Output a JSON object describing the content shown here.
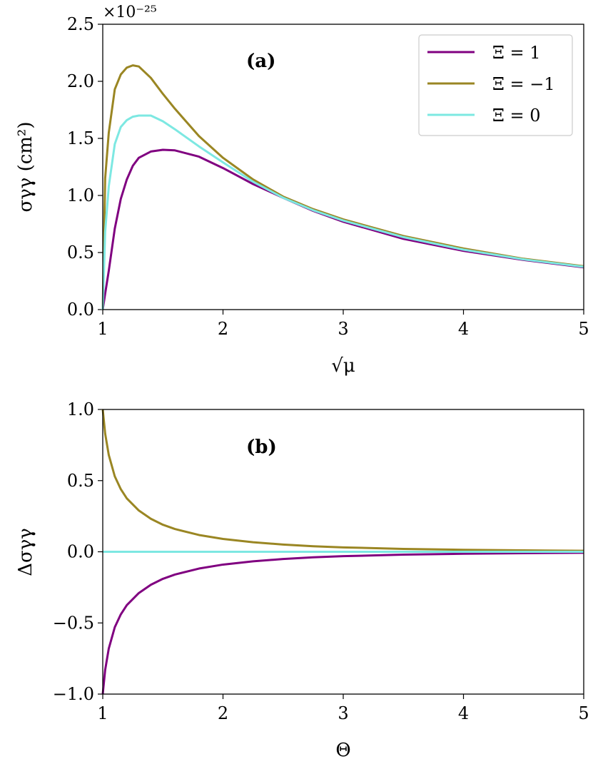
{
  "colors": {
    "purple": "#800080",
    "olive": "#9a8623",
    "cyan": "#7de8e2"
  },
  "chart_data": [
    {
      "type": "line",
      "panel_label": "(a)",
      "xlabel": "√μ",
      "ylabel": "σγγ (cm²)",
      "y_multiplier": "×10⁻²⁵",
      "xlim": [
        1,
        5
      ],
      "ylim": [
        0,
        2.5
      ],
      "xticks": [
        "1",
        "2",
        "3",
        "4",
        "5"
      ],
      "yticks": [
        "0.0",
        "0.5",
        "1.0",
        "1.5",
        "2.0",
        "2.5"
      ],
      "legend": {
        "position": "top-right",
        "entries": [
          "Ξ = 1",
          "Ξ = −1",
          "Ξ = 0"
        ]
      },
      "x": [
        1.0,
        1.02,
        1.05,
        1.1,
        1.15,
        1.2,
        1.25,
        1.3,
        1.4,
        1.5,
        1.6,
        1.8,
        2.0,
        2.25,
        2.5,
        2.75,
        3.0,
        3.5,
        4.0,
        4.5,
        5.0
      ],
      "series": [
        {
          "name": "Ξ = 1",
          "color": "purple",
          "values": [
            0.0,
            0.14,
            0.34,
            0.71,
            0.97,
            1.14,
            1.26,
            1.33,
            1.385,
            1.4,
            1.395,
            1.34,
            1.24,
            1.1,
            0.98,
            0.865,
            0.77,
            0.62,
            0.515,
            0.435,
            0.37
          ]
        },
        {
          "name": "Ξ = −1",
          "color": "olive",
          "values": [
            0.0,
            1.15,
            1.55,
            1.93,
            2.06,
            2.12,
            2.14,
            2.13,
            2.03,
            1.89,
            1.76,
            1.52,
            1.33,
            1.14,
            0.99,
            0.88,
            0.79,
            0.645,
            0.535,
            0.445,
            0.38
          ]
        },
        {
          "name": "Ξ = 0",
          "color": "cyan",
          "values": [
            0.0,
            0.68,
            1.08,
            1.45,
            1.6,
            1.66,
            1.69,
            1.7,
            1.7,
            1.65,
            1.58,
            1.43,
            1.29,
            1.12,
            0.98,
            0.87,
            0.78,
            0.635,
            0.525,
            0.44,
            0.375
          ]
        }
      ]
    },
    {
      "type": "line",
      "panel_label": "(b)",
      "xlabel": "Θ",
      "ylabel": "Δσγγ",
      "xlim": [
        1,
        5
      ],
      "ylim": [
        -1,
        1
      ],
      "xticks": [
        "1",
        "2",
        "3",
        "4",
        "5"
      ],
      "yticks": [
        "−1.0",
        "−0.5",
        "0.0",
        "0.5",
        "1.0"
      ],
      "x": [
        1.0,
        1.02,
        1.05,
        1.1,
        1.15,
        1.2,
        1.3,
        1.4,
        1.5,
        1.6,
        1.8,
        2.0,
        2.25,
        2.5,
        2.75,
        3.0,
        3.5,
        4.0,
        4.5,
        5.0
      ],
      "series": [
        {
          "name": "Ξ = 1",
          "color": "purple",
          "values": [
            -1.0,
            -0.83,
            -0.68,
            -0.53,
            -0.44,
            -0.375,
            -0.29,
            -0.232,
            -0.19,
            -0.16,
            -0.118,
            -0.09,
            -0.067,
            -0.051,
            -0.039,
            -0.031,
            -0.02,
            -0.014,
            -0.01,
            -0.007
          ]
        },
        {
          "name": "Ξ = −1",
          "color": "olive",
          "values": [
            1.0,
            0.83,
            0.68,
            0.53,
            0.44,
            0.375,
            0.29,
            0.232,
            0.19,
            0.16,
            0.118,
            0.09,
            0.067,
            0.051,
            0.039,
            0.031,
            0.02,
            0.014,
            0.01,
            0.007
          ]
        },
        {
          "name": "Ξ = 0",
          "color": "cyan",
          "values": [
            0.0,
            0.0,
            0.0,
            0.0,
            0.0,
            0.0,
            0.0,
            0.0,
            0.0,
            0.0,
            0.0,
            0.0,
            0.0,
            0.0,
            0.0,
            0.0,
            0.0,
            0.0,
            0.0,
            0.0
          ]
        }
      ]
    }
  ]
}
